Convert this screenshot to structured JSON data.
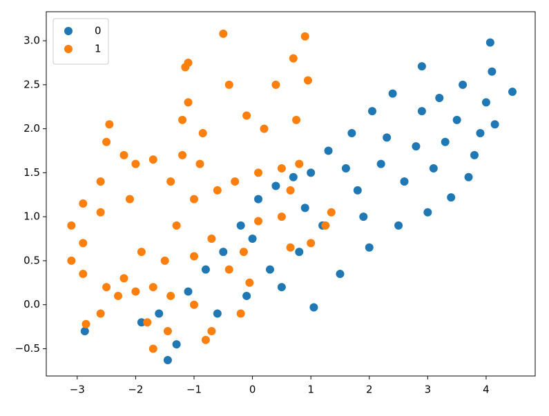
{
  "chart_data": {
    "type": "scatter",
    "xlim": [
      -3.53,
      4.84
    ],
    "ylim": [
      -0.81,
      3.33
    ],
    "xticks": [
      {
        "value": -3,
        "label": "−3"
      },
      {
        "value": -2,
        "label": "−2"
      },
      {
        "value": -1,
        "label": "−1"
      },
      0,
      1,
      2,
      3,
      4
    ],
    "yticks": [
      {
        "value": -0.5,
        "label": "−0.5"
      },
      {
        "value": 0,
        "label": "0.0"
      },
      0.5,
      {
        "value": 1,
        "label": "1.0"
      },
      1.5,
      {
        "value": 2,
        "label": "2.0"
      },
      2.5,
      {
        "value": 3,
        "label": "3.0"
      }
    ],
    "legend": "upper left",
    "series": [
      {
        "name": "0",
        "color": "#1f77b4",
        "x": [
          4.07,
          4.45,
          2.9,
          4.1,
          4.15,
          3.6,
          3.2,
          2.4,
          2.05,
          1.7,
          1.3,
          1.0,
          0.7,
          0.4,
          0.1,
          -0.2,
          -0.5,
          -0.8,
          -1.1,
          -1.45,
          -2.87,
          -1.9,
          -1.3,
          1.05,
          0.5,
          1.5,
          2.0,
          2.5,
          3.0,
          3.4,
          3.8,
          3.9,
          3.5,
          2.8,
          2.2,
          1.8,
          1.2,
          0.8,
          0.3,
          -0.1,
          -0.6,
          -1.6,
          2.6,
          3.1,
          1.9,
          2.9,
          3.3,
          2.3,
          1.6,
          0.9,
          0.0,
          4.0,
          3.7
        ],
        "values": [
          2.98,
          2.42,
          2.71,
          2.65,
          2.05,
          2.5,
          2.35,
          2.4,
          2.2,
          1.95,
          1.75,
          1.5,
          1.45,
          1.35,
          1.2,
          0.9,
          0.6,
          0.4,
          0.15,
          -0.63,
          -0.3,
          -0.2,
          -0.45,
          -0.03,
          0.2,
          0.35,
          0.65,
          0.9,
          1.05,
          1.22,
          1.7,
          1.95,
          2.1,
          1.8,
          1.6,
          1.3,
          0.9,
          0.6,
          0.4,
          0.1,
          -0.1,
          -0.1,
          1.4,
          1.55,
          1.0,
          2.2,
          1.85,
          1.9,
          1.55,
          1.1,
          0.75,
          2.3,
          1.45
        ]
      },
      {
        "name": "1",
        "color": "#ff7f0e",
        "x": [
          -3.1,
          -3.1,
          -2.9,
          -2.6,
          -2.5,
          -2.45,
          -2.2,
          -2.0,
          -1.7,
          -1.2,
          -1.2,
          -1.15,
          -1.1,
          -0.5,
          -0.4,
          -0.1,
          0.2,
          0.4,
          0.7,
          0.9,
          0.75,
          0.5,
          0.65,
          1.35,
          1.0,
          0.65,
          0.5,
          0.1,
          -0.3,
          -0.6,
          -1.0,
          -1.3,
          -1.5,
          -1.7,
          -2.0,
          -2.3,
          -2.6,
          -2.85,
          -2.9,
          -2.5,
          -2.2,
          -1.9,
          -1.8,
          -1.7,
          -1.45,
          -1.4,
          -1.0,
          -0.8,
          -0.7,
          -0.2,
          -0.05,
          -0.15,
          -0.4,
          -0.7,
          -1.0,
          -0.9,
          -1.4,
          -2.1,
          -2.6,
          -2.9,
          -1.1,
          -0.85,
          0.1,
          0.8,
          0.95,
          1.25
        ],
        "values": [
          0.5,
          0.9,
          1.15,
          1.4,
          1.85,
          2.05,
          1.7,
          1.6,
          1.65,
          1.7,
          2.1,
          2.7,
          2.75,
          3.08,
          2.5,
          2.15,
          2.0,
          2.5,
          2.8,
          3.05,
          2.1,
          1.55,
          1.3,
          1.05,
          0.7,
          0.65,
          1.0,
          1.5,
          1.4,
          1.3,
          1.2,
          0.9,
          0.5,
          0.2,
          0.15,
          0.1,
          -0.1,
          -0.22,
          0.35,
          0.2,
          0.3,
          0.6,
          -0.2,
          -0.5,
          -0.3,
          0.1,
          0.0,
          -0.4,
          -0.3,
          -0.1,
          0.25,
          0.6,
          0.4,
          0.75,
          0.55,
          1.6,
          1.4,
          1.2,
          1.05,
          0.7,
          2.3,
          1.95,
          0.95,
          1.6,
          2.55,
          0.9
        ]
      }
    ]
  }
}
